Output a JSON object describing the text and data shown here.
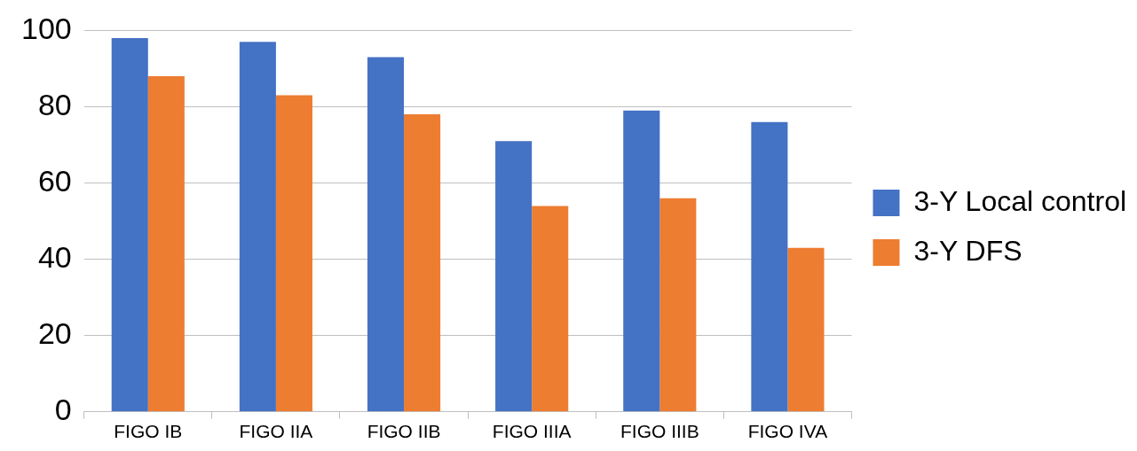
{
  "chart_data": {
    "type": "bar",
    "categories": [
      "FIGO IB",
      "FIGO IIA",
      "FIGO IIB",
      "FIGO IIIA",
      "FIGO IIIB",
      "FIGO IVA"
    ],
    "series": [
      {
        "name": "3-Y Local control",
        "color": "#4472c4",
        "values": [
          98,
          97,
          93,
          71,
          79,
          76
        ]
      },
      {
        "name": "3-Y DFS",
        "color": "#ed7d31",
        "values": [
          88,
          83,
          78,
          54,
          56,
          43
        ]
      }
    ],
    "ylim": [
      0,
      100
    ],
    "yticks": [
      0,
      20,
      40,
      60,
      80,
      100
    ],
    "grid": "y",
    "legend": "right"
  }
}
